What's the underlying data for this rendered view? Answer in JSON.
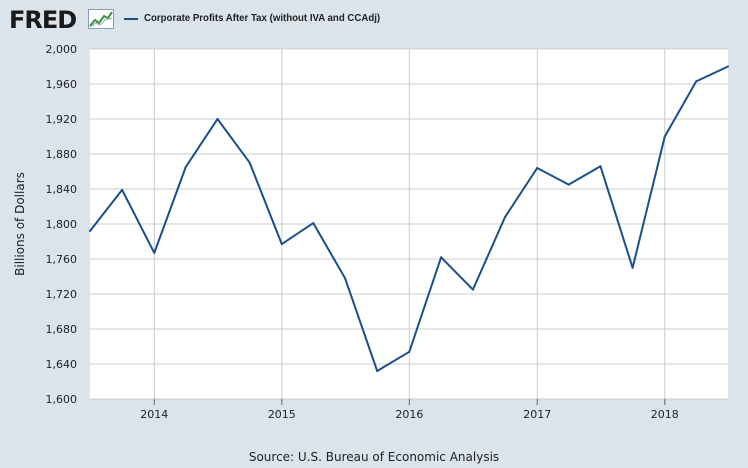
{
  "brand": {
    "logo_text": "FRED"
  },
  "chart_data": {
    "type": "line",
    "title": "Corporate Profits After Tax (without IVA and CCAdj)",
    "ylabel": "Billions of Dollars",
    "xlabel": "",
    "ylim": [
      1600,
      2000
    ],
    "yticks": [
      1600,
      1640,
      1680,
      1720,
      1760,
      1800,
      1840,
      1880,
      1920,
      1960,
      2000
    ],
    "ytick_labels": [
      "1,600",
      "1,640",
      "1,680",
      "1,720",
      "1,760",
      "1,800",
      "1,840",
      "1,880",
      "1,920",
      "1,960",
      "2,000"
    ],
    "xlim": [
      "2013-07-01",
      "2018-07-01"
    ],
    "xticks": [
      "2014-01-01",
      "2015-01-01",
      "2016-01-01",
      "2017-01-01",
      "2018-01-01"
    ],
    "xtick_labels": [
      "2014",
      "2015",
      "2016",
      "2017",
      "2018"
    ],
    "grid": true,
    "legend_position": "top-left",
    "series": [
      {
        "name": "Corporate Profits After Tax (without IVA and CCAdj)",
        "color": "#1b4f8a",
        "x": [
          "2013-07-01",
          "2013-10-01",
          "2014-01-01",
          "2014-04-01",
          "2014-07-01",
          "2014-10-01",
          "2015-01-01",
          "2015-04-01",
          "2015-07-01",
          "2015-10-01",
          "2016-01-01",
          "2016-04-01",
          "2016-07-01",
          "2016-10-01",
          "2017-01-01",
          "2017-04-01",
          "2017-07-01",
          "2017-10-01",
          "2018-01-01",
          "2018-04-01",
          "2018-07-01"
        ],
        "values": [
          1792,
          1839,
          1767,
          1865,
          1920,
          1870,
          1777,
          1801,
          1738,
          1632,
          1654,
          1762,
          1725,
          1808,
          1864,
          1845,
          1866,
          1750,
          1900,
          1963,
          1980
        ]
      }
    ]
  },
  "footer": {
    "source": "Source: U.S. Bureau of Economic Analysis"
  }
}
